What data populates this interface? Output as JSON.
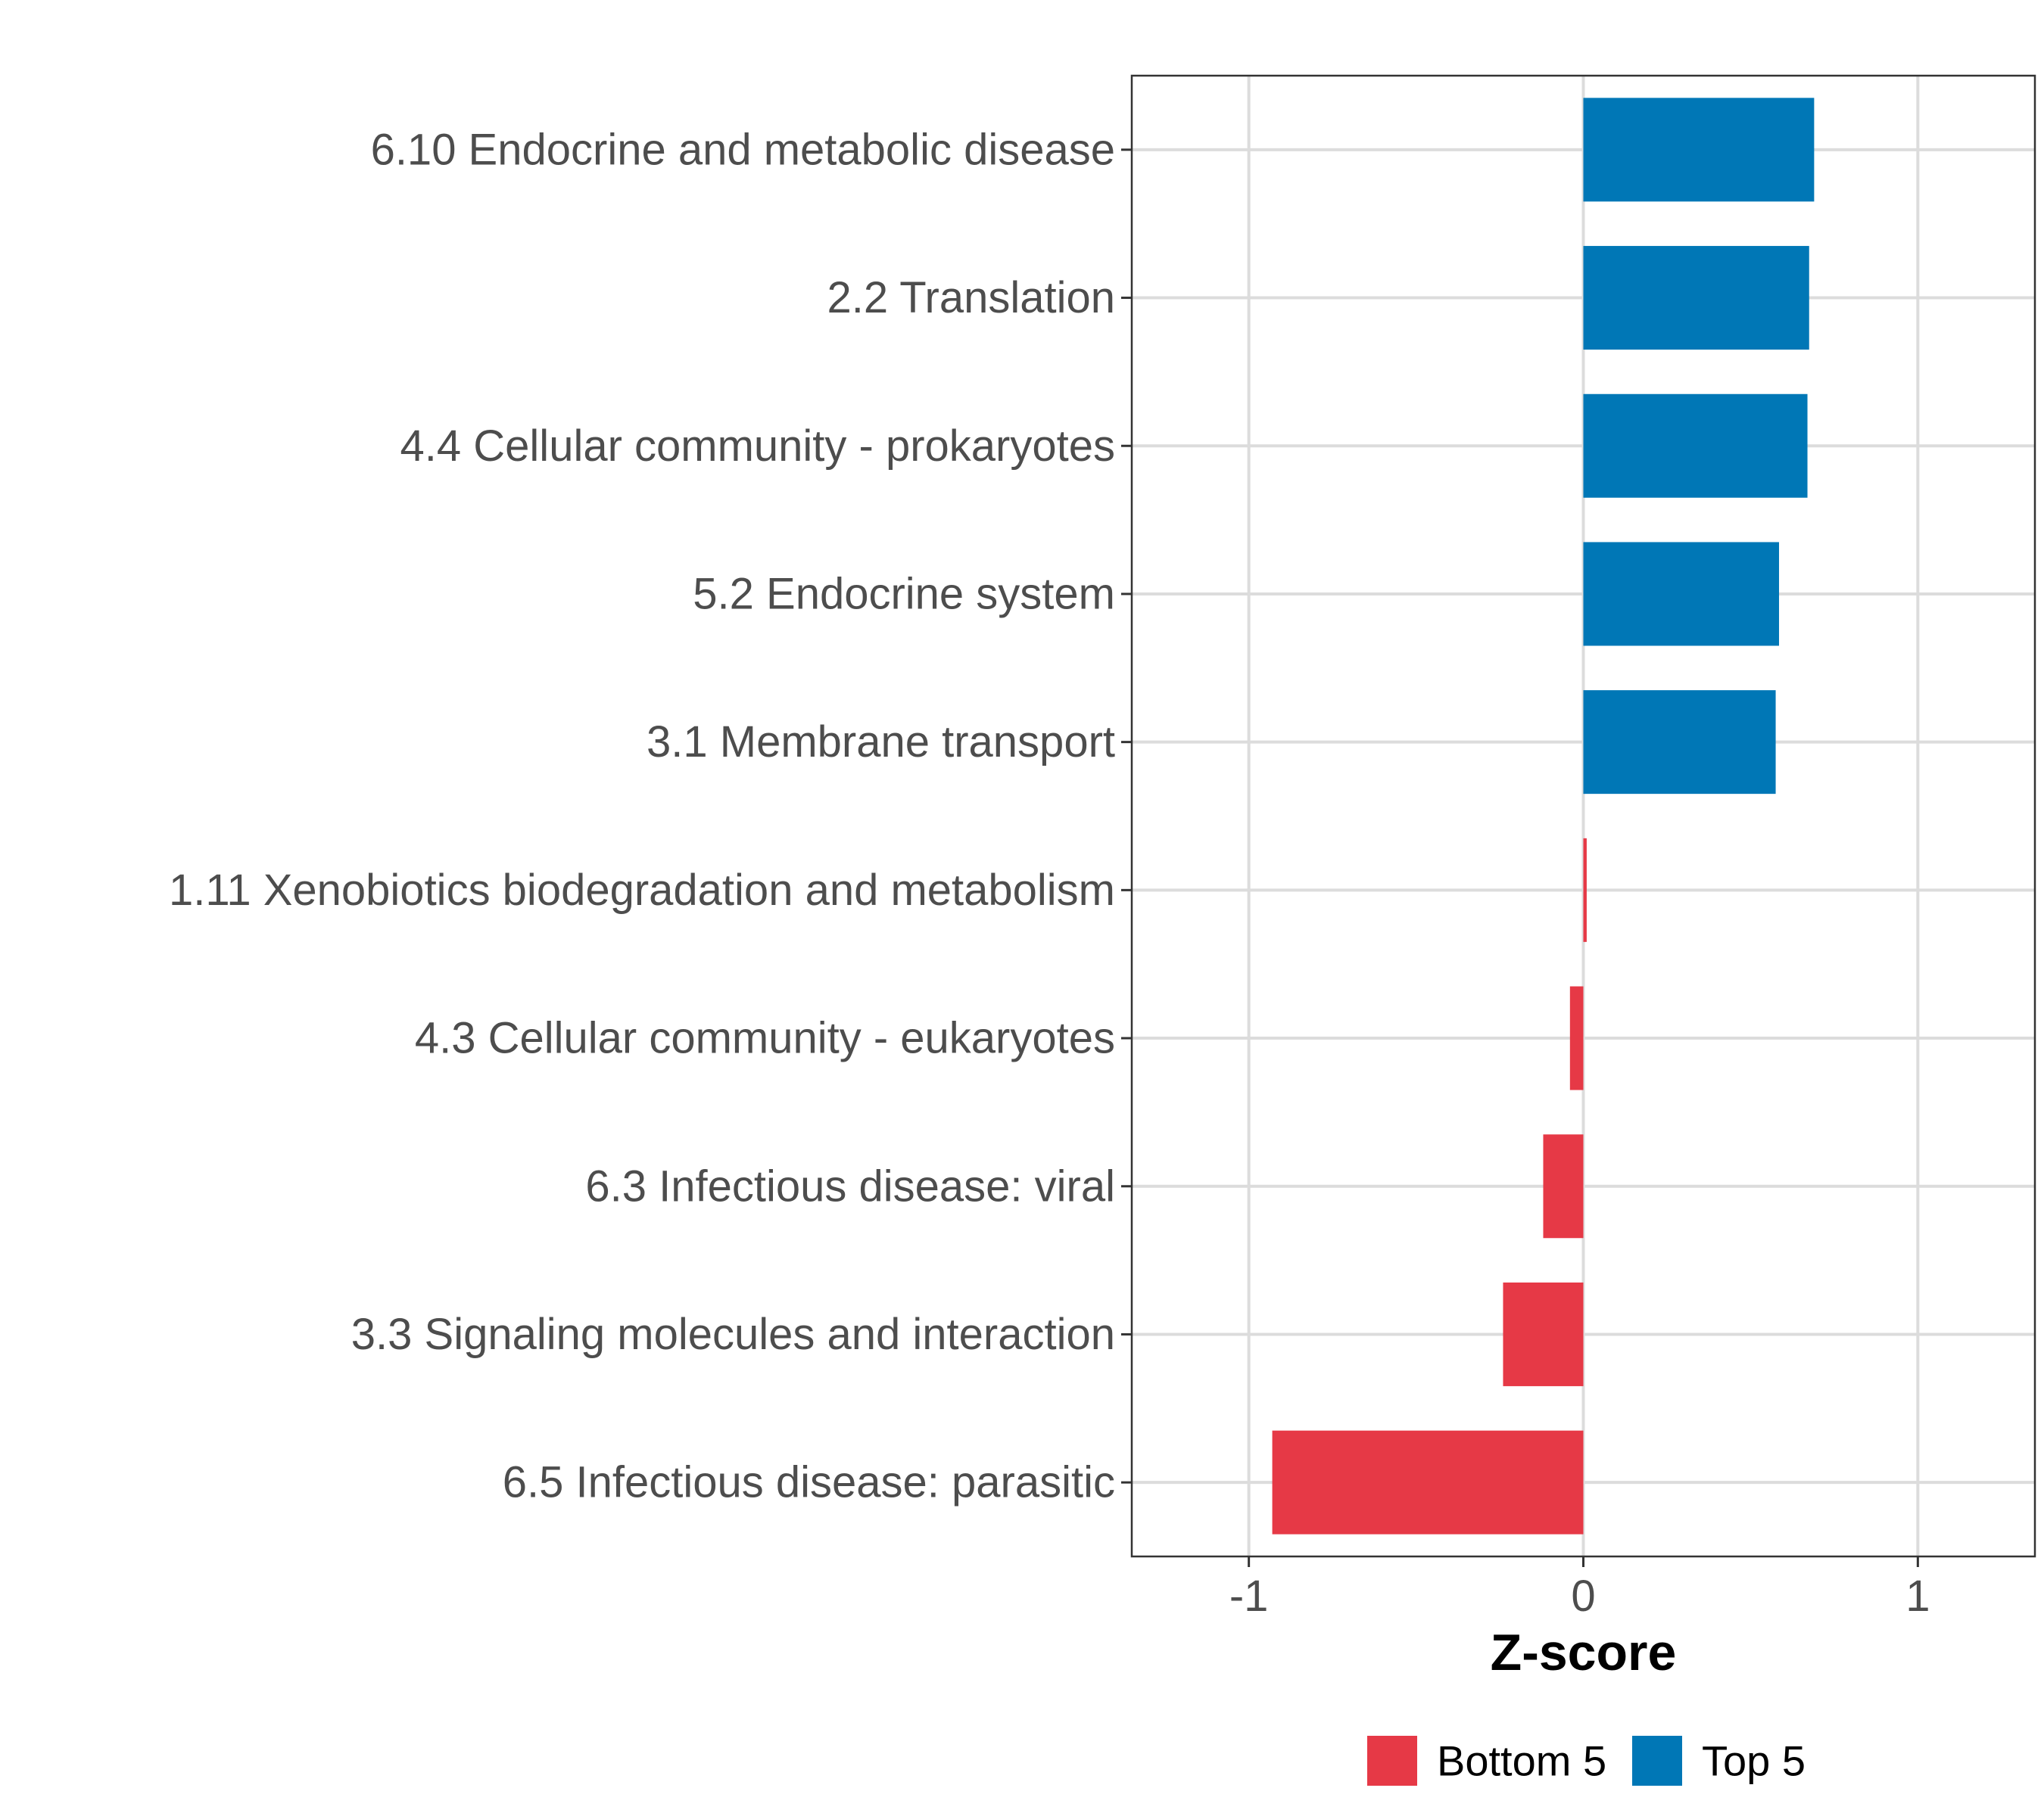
{
  "chart_data": {
    "type": "bar",
    "orientation": "horizontal",
    "title": "",
    "xlabel": "Z-score",
    "ylabel": "",
    "xlim": [
      -1.35,
      1.35
    ],
    "xticks": [
      -1,
      0,
      1
    ],
    "xtick_labels": [
      "-1",
      "0",
      "1"
    ],
    "grid": true,
    "categories": [
      "6.10 Endocrine and metabolic disease",
      "2.2 Translation",
      "4.4 Cellular community - prokaryotes",
      "5.2 Endocrine system",
      "3.1 Membrane transport",
      "1.11 Xenobiotics biodegradation and metabolism",
      "4.3 Cellular community - eukaryotes",
      "6.3 Infectious disease: viral",
      "3.3 Signaling molecules and interaction",
      "6.5 Infectious disease: parasitic"
    ],
    "values": [
      0.69,
      0.675,
      0.67,
      0.585,
      0.575,
      0.01,
      -0.04,
      -0.12,
      -0.24,
      -0.93
    ],
    "groups": [
      "Top 5",
      "Top 5",
      "Top 5",
      "Top 5",
      "Top 5",
      "Bottom 5",
      "Bottom 5",
      "Bottom 5",
      "Bottom 5",
      "Bottom 5"
    ],
    "legend": {
      "position": "bottom",
      "entries": [
        {
          "label": "Bottom 5",
          "color": "#e63946"
        },
        {
          "label": "Top 5",
          "color": "#0077b6"
        }
      ]
    }
  }
}
